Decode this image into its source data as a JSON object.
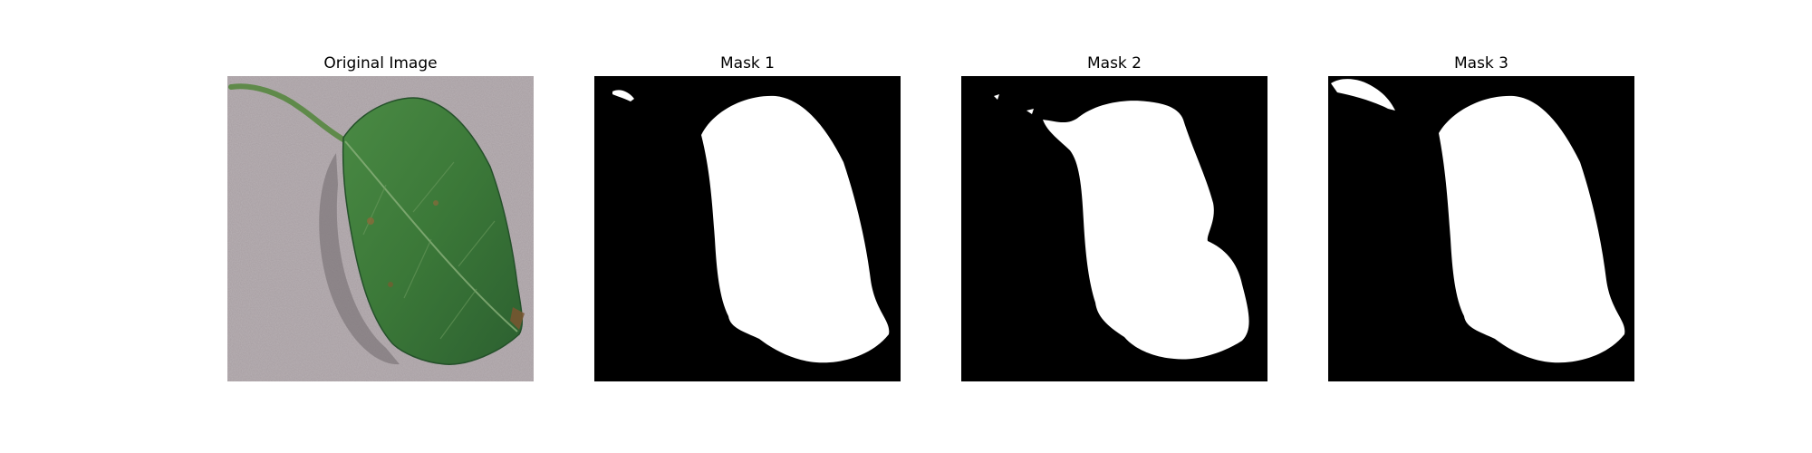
{
  "figure": {
    "panels": [
      {
        "title": "Original Image"
      },
      {
        "title": "Mask 1"
      },
      {
        "title": "Mask 2"
      },
      {
        "title": "Mask 3"
      }
    ]
  },
  "colors": {
    "background": "#ffffff",
    "surface": "#a79ea2",
    "leaf": "#3d7a3a",
    "leaf_dark": "#2a5a2a",
    "mask_bg": "#000000",
    "mask_fg": "#ffffff"
  }
}
